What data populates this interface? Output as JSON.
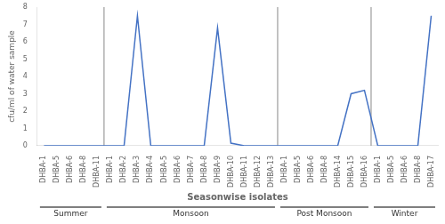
{
  "chart_data": {
    "type": "line",
    "x_label": "Seasonwise isolates",
    "y_label": "cfu/ml of water sample",
    "categories": [
      "DHBA-1",
      "DHBA-5",
      "DHBA-6",
      "DHBA-8",
      "DHBA-11",
      "DHBA-1",
      "DHBA-2",
      "DHBA-3",
      "DHBA-4",
      "DHBA-5",
      "DHBA-6",
      "DHBA-7",
      "DHBA-8",
      "DHBA-9",
      "DHBA-10",
      "DHBA-11",
      "DHBA-12",
      "DHBA-13",
      "DHBA-1",
      "DHBA-5",
      "DHBA-6",
      "DHBA-8",
      "DHBA-14",
      "DHBA-15",
      "DHBA-16",
      "DHBA-1",
      "DHBA-5",
      "DHBA-6",
      "DHBA-8",
      "DHBA-17"
    ],
    "groups": [
      "Summer",
      "Summer",
      "Summer",
      "Summer",
      "Summer",
      "Monsoon",
      "Monsoon",
      "Monsoon",
      "Monsoon",
      "Monsoon",
      "Monsoon",
      "Monsoon",
      "Monsoon",
      "Monsoon",
      "Monsoon",
      "Monsoon",
      "Monsoon",
      "Monsoon",
      "Post Monsoon",
      "Post Monsoon",
      "Post Monsoon",
      "Post Monsoon",
      "Post Monsoon",
      "Post Monsoon",
      "Post Monsoon",
      "Winter",
      "Winter",
      "Winter",
      "Winter",
      "Winter"
    ],
    "values": [
      0,
      0,
      0,
      0,
      0,
      0,
      0,
      7.5,
      0,
      0,
      0,
      0,
      0,
      6.8,
      0.15,
      0,
      0,
      0,
      0,
      0,
      0,
      0,
      0,
      3.0,
      3.2,
      0,
      0,
      0,
      0,
      7.5
    ],
    "color": "#4472C4",
    "ylim": [
      0,
      8
    ],
    "yticks": [
      0,
      1,
      2,
      3,
      4,
      5,
      6,
      7,
      8
    ],
    "grid": false
  }
}
